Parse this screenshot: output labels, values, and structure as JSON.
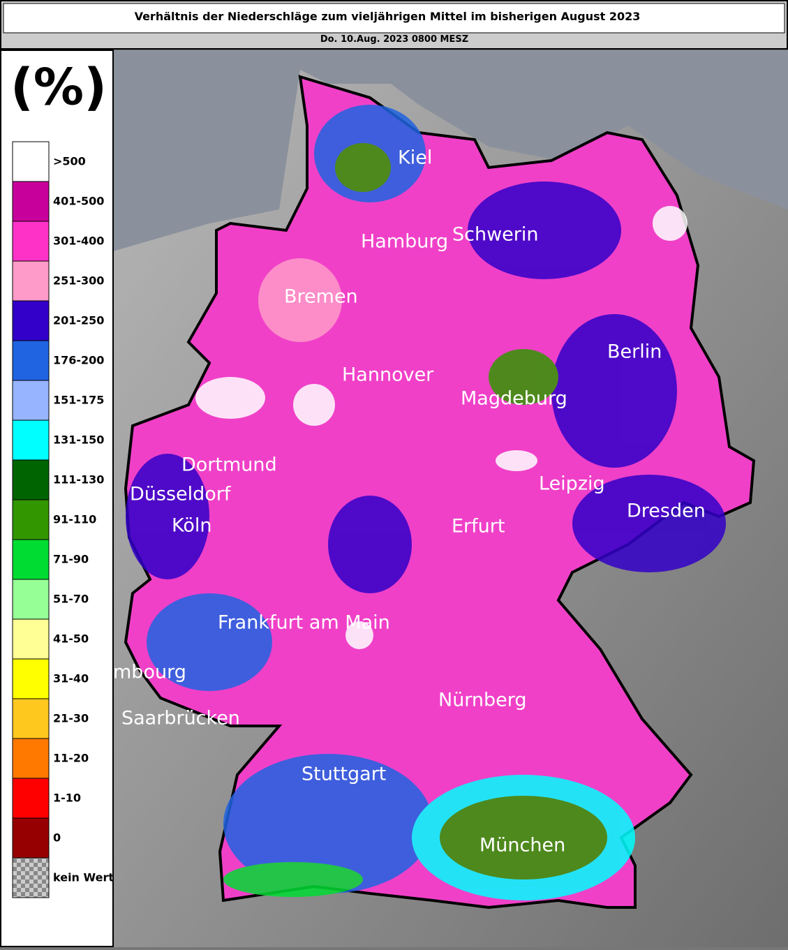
{
  "header": {
    "title": "Verhältnis der Niederschläge zum vieljährigen Mittel im bisherigen August 2023",
    "subtitle": "Do. 10.Aug. 2023 0800 MESZ"
  },
  "legend": {
    "unit": "(%)",
    "items": [
      {
        "label": ">500",
        "color": "#ffffff"
      },
      {
        "label": "401-500",
        "color": "#c8009b"
      },
      {
        "label": "301-400",
        "color": "#ff32c8"
      },
      {
        "label": "251-300",
        "color": "#ff9bc8"
      },
      {
        "label": "201-250",
        "color": "#3200c8"
      },
      {
        "label": "176-200",
        "color": "#2064e1"
      },
      {
        "label": "151-175",
        "color": "#96b4ff"
      },
      {
        "label": "131-150",
        "color": "#00ffff"
      },
      {
        "label": "111-130",
        "color": "#006400"
      },
      {
        "label": "91-110",
        "color": "#329600"
      },
      {
        "label": "71-90",
        "color": "#00dc32"
      },
      {
        "label": "51-70",
        "color": "#96ff96"
      },
      {
        "label": "41-50",
        "color": "#ffff96"
      },
      {
        "label": "31-40",
        "color": "#ffff00"
      },
      {
        "label": "21-30",
        "color": "#ffc81e"
      },
      {
        "label": "11-20",
        "color": "#ff7800"
      },
      {
        "label": "1-10",
        "color": "#ff0000"
      },
      {
        "label": "0",
        "color": "#960000"
      },
      {
        "label": "kein Wert",
        "color": "checker"
      }
    ]
  },
  "map": {
    "cities": [
      "Kiel",
      "Hamburg",
      "Schwerin",
      "Bremen",
      "Berlin",
      "Hannover",
      "Magdeburg",
      "Dortmund",
      "Düsseldorf",
      "Leipzig",
      "Dresden",
      "Köln",
      "Erfurt",
      "Frankfurt am Main",
      "mbourg",
      "Saarbrücken",
      "Nürnberg",
      "Stuttgart",
      "München"
    ]
  }
}
